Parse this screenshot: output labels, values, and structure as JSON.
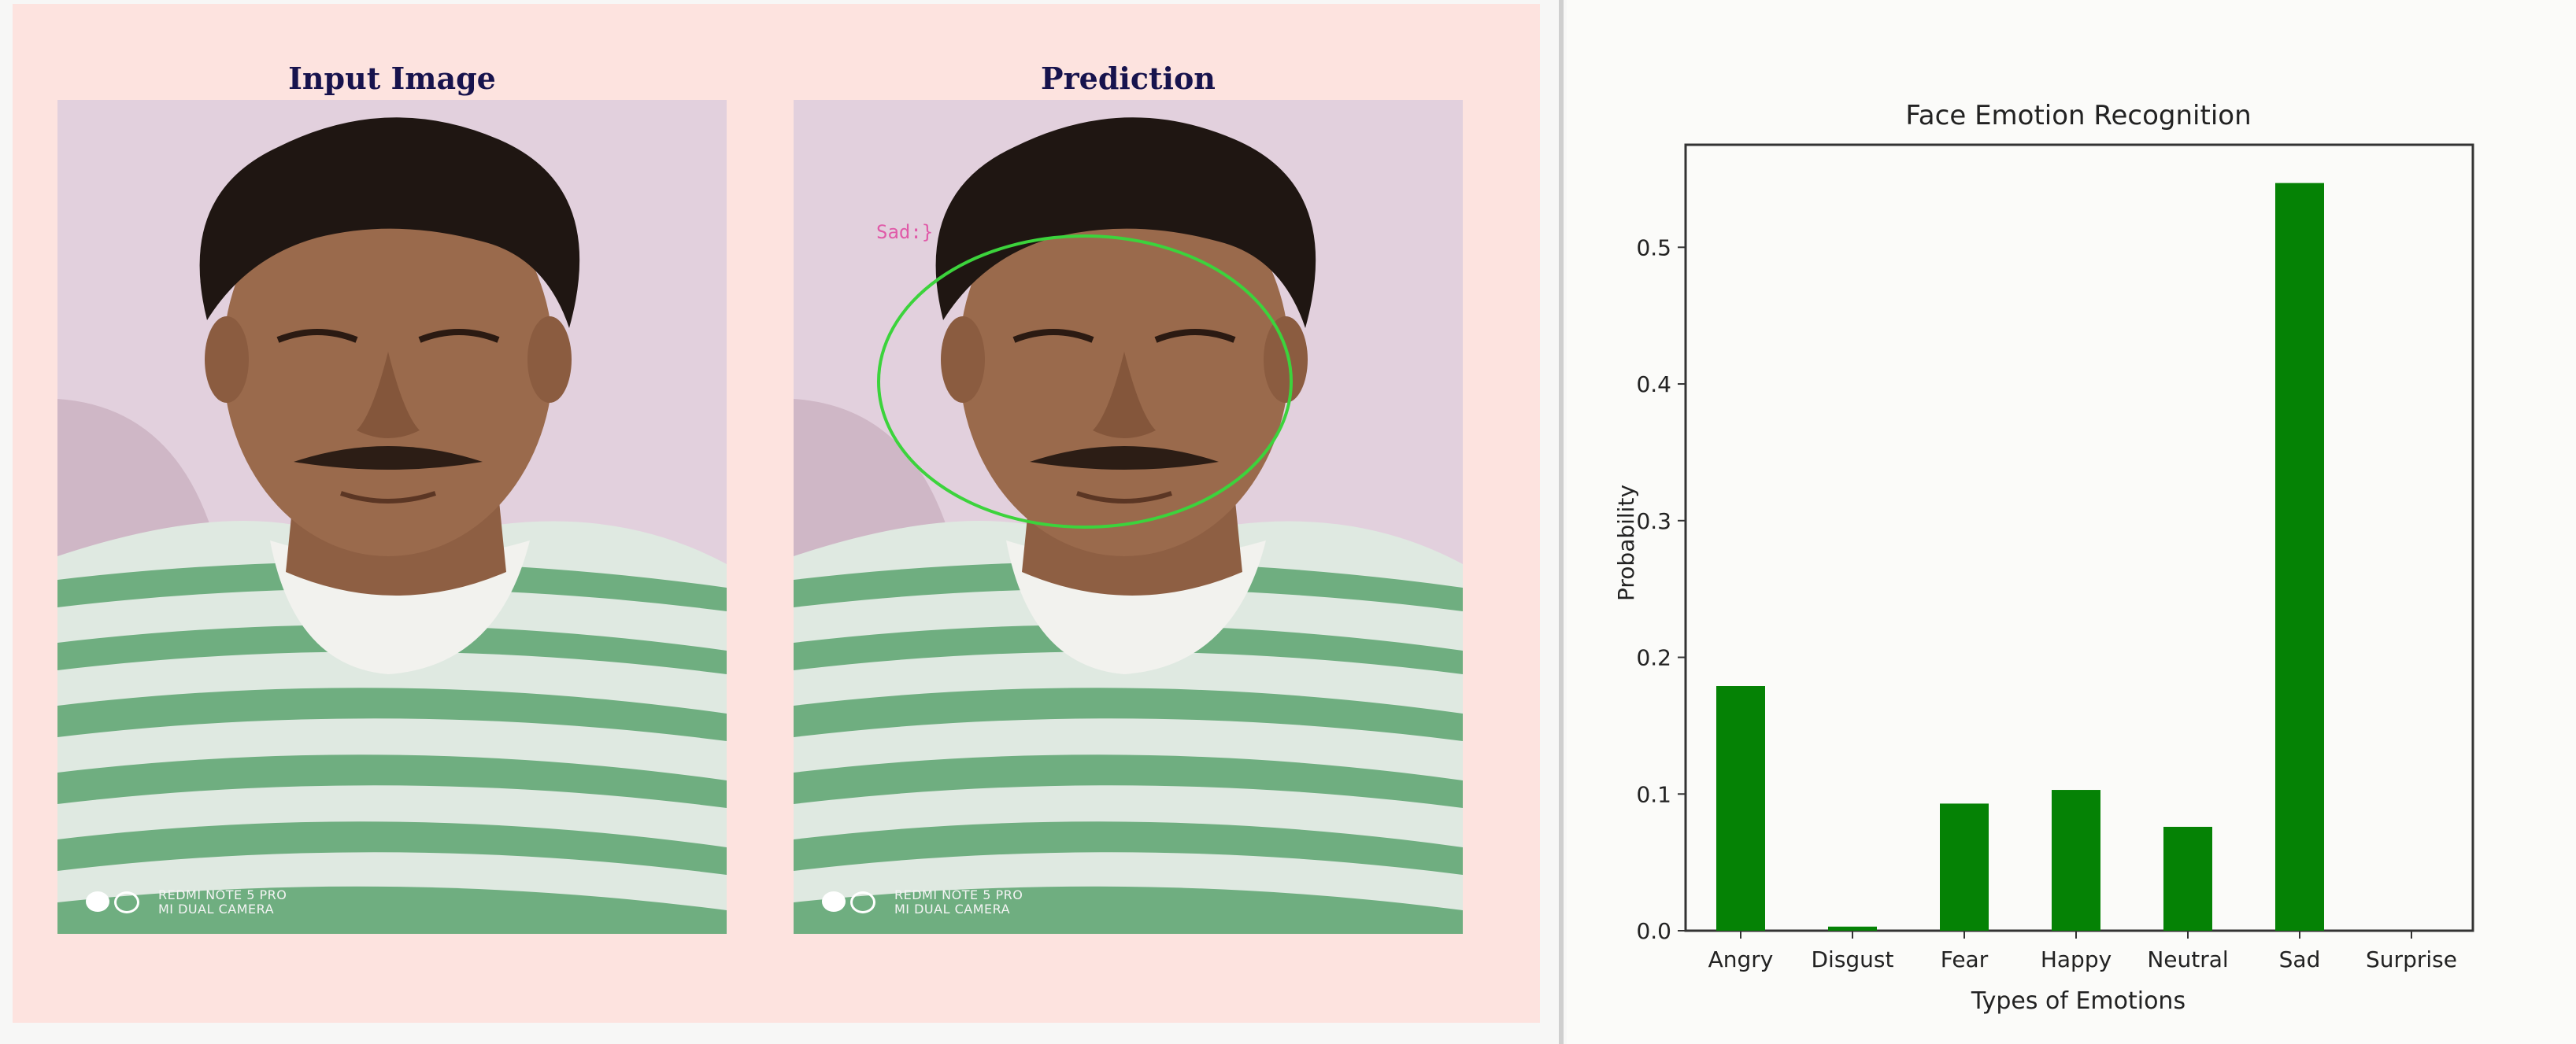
{
  "images": {
    "input_title": "Input Image",
    "prediction_title": "Prediction",
    "prediction_label": "Sad:}",
    "watermark_line1": "REDMI NOTE 5 PRO",
    "watermark_line2": "MI DUAL CAMERA"
  },
  "colors": {
    "panel_background": "#fde3df",
    "title_text": "#17134d",
    "bar": "#058205",
    "face_ellipse": "#3cd33c",
    "prediction_label": "#e05aa8"
  },
  "chart_data": {
    "type": "bar",
    "title": "Face Emotion Recognition",
    "xlabel": "Types of Emotions",
    "ylabel": "Probability",
    "categories": [
      "Angry",
      "Disgust",
      "Fear",
      "Happy",
      "Neutral",
      "Sad",
      "Surprise"
    ],
    "values": [
      0.179,
      0.003,
      0.093,
      0.103,
      0.076,
      0.547,
      0.0
    ],
    "yticks": [
      "0.0",
      "0.1",
      "0.2",
      "0.3",
      "0.4",
      "0.5"
    ],
    "ylim": [
      0,
      0.575
    ],
    "grid": false,
    "legend": "none"
  }
}
